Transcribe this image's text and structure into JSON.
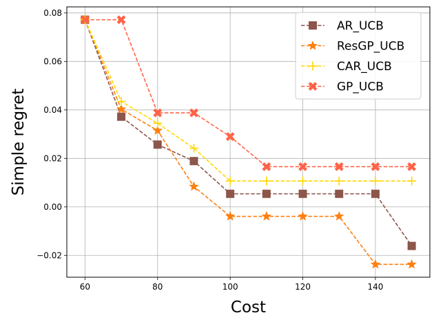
{
  "chart_data": {
    "type": "line",
    "xlabel": "Cost",
    "ylabel": "Simple regret",
    "xlim": [
      55,
      155
    ],
    "ylim": [
      -0.029,
      0.0825
    ],
    "xticks": [
      60,
      80,
      100,
      120,
      140
    ],
    "yticks": [
      -0.02,
      0.0,
      0.02,
      0.04,
      0.06,
      0.08
    ],
    "ytick_labels": [
      "−0.02",
      "0.00",
      "0.02",
      "0.04",
      "0.06",
      "0.08"
    ],
    "grid": true,
    "legend_position": "top-right",
    "x": [
      60,
      70,
      80,
      90,
      100,
      110,
      120,
      130,
      140,
      150
    ],
    "series": [
      {
        "name": "AR_UCB",
        "color": "#8c564b",
        "marker": "square",
        "dashed": true,
        "values": [
          0.0772,
          0.0372,
          0.0257,
          0.0189,
          0.0054,
          0.0054,
          0.0054,
          0.0054,
          0.0054,
          -0.0161
        ]
      },
      {
        "name": "ResGP_UCB",
        "color": "#ff7f0e",
        "marker": "star",
        "dashed": true,
        "values": [
          0.0772,
          0.0403,
          0.0315,
          0.0084,
          -0.0039,
          -0.0039,
          -0.0039,
          -0.0039,
          -0.0237,
          -0.0237
        ]
      },
      {
        "name": "CAR_UCB",
        "color": "#ffd700",
        "marker": "plus",
        "dashed": true,
        "values": [
          0.0772,
          0.0435,
          0.0345,
          0.0242,
          0.0107,
          0.0107,
          0.0107,
          0.0107,
          0.0107,
          0.0107
        ]
      },
      {
        "name": "GP_UCB",
        "color": "#ff6347",
        "marker": "x",
        "dashed": true,
        "values": [
          0.0772,
          0.0772,
          0.0388,
          0.0388,
          0.029,
          0.0166,
          0.0166,
          0.0166,
          0.0166,
          0.0166
        ]
      }
    ]
  }
}
